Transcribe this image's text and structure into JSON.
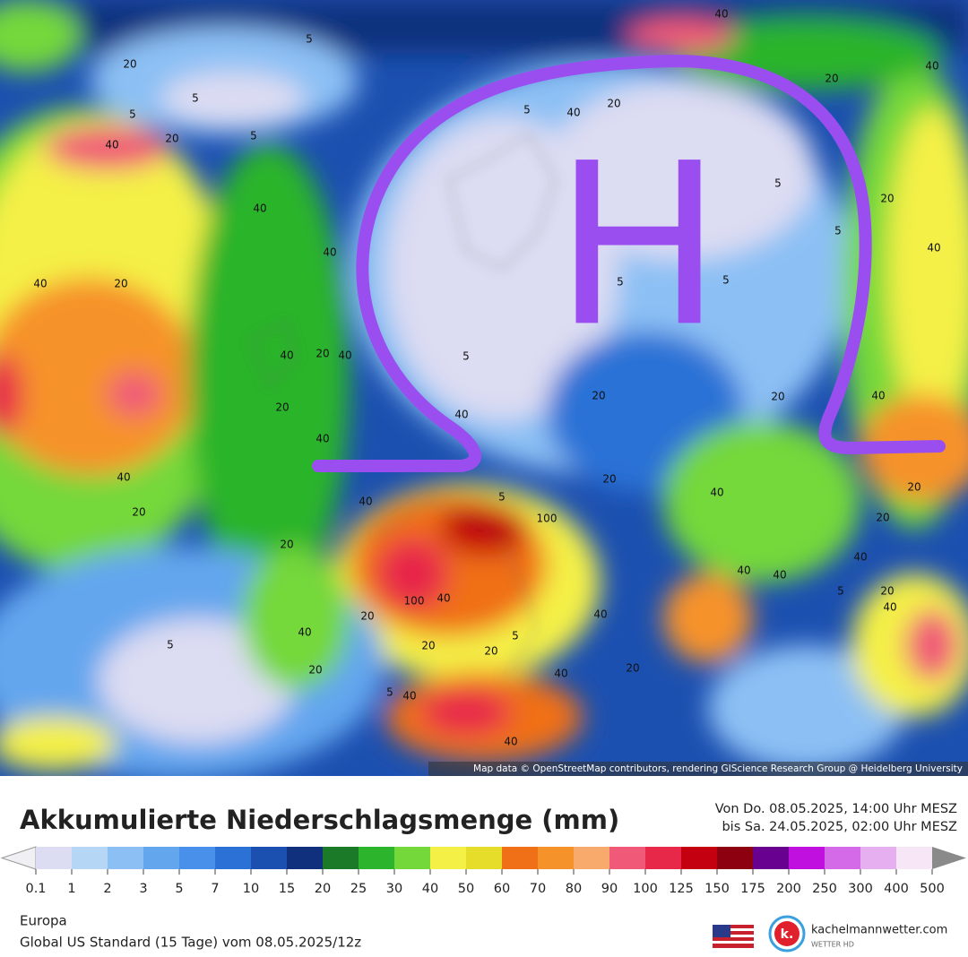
{
  "map": {
    "contour_labels": [
      "40",
      "5",
      "20",
      "5",
      "5",
      "20",
      "40",
      "5",
      "40",
      "20",
      "20",
      "40",
      "40",
      "40",
      "40",
      "20",
      "20",
      "40",
      "40",
      "5",
      "5",
      "5",
      "20",
      "40",
      "20",
      "40",
      "40",
      "20",
      "40",
      "20",
      "40",
      "5",
      "20",
      "40",
      "20",
      "5",
      "40",
      "20",
      "5",
      "20",
      "40",
      "5",
      "20",
      "40",
      "20",
      "40",
      "40",
      "20",
      "5",
      "40",
      "20",
      "100",
      "100",
      "40",
      "5",
      "20",
      "40",
      "20",
      "5",
      "40",
      "40",
      "5",
      "40",
      "20"
    ],
    "annotation": "H",
    "attribution": "Map data © OpenStreetMap contributors, rendering GIScience Research Group @ Heidelberg University"
  },
  "legend": {
    "title": "Akkumulierte Niederschlagsmenge (mm)",
    "period": [
      "Von Do. 08.05.2025, 14:00 Uhr MESZ",
      "bis Sa. 24.05.2025, 02:00 Uhr MESZ"
    ],
    "bounds": [
      0.1,
      1,
      2,
      3,
      5,
      7,
      10,
      15,
      20,
      25,
      30,
      40,
      50,
      60,
      70,
      80,
      90,
      100,
      125,
      150,
      175,
      200,
      250,
      300,
      400,
      500
    ],
    "colors": [
      "#dcdcf2",
      "#b6d6f6",
      "#8cc0f4",
      "#64a6ee",
      "#4890ea",
      "#2c72d6",
      "#1c50b0",
      "#10307e",
      "#1a7a28",
      "#2cb42c",
      "#74d83a",
      "#f4f046",
      "#e6dc2a",
      "#f07018",
      "#f6922a",
      "#f8aa6c",
      "#f05a78",
      "#e82848",
      "#c40010",
      "#8c0010",
      "#680090",
      "#c010e0",
      "#d46ae8",
      "#e6b0f0",
      "#f6e6f6",
      "#d2d2d2"
    ],
    "under_color": "#f0f0f4",
    "over_color": "#8a8a8a"
  },
  "footer": {
    "region": "Europa",
    "model": "Global US Standard (15 Tage) vom 08.05.2025/12z"
  },
  "brand": {
    "logo": "k.",
    "name": "kachelmannwetter.com",
    "tagline": "WETTER HD"
  }
}
